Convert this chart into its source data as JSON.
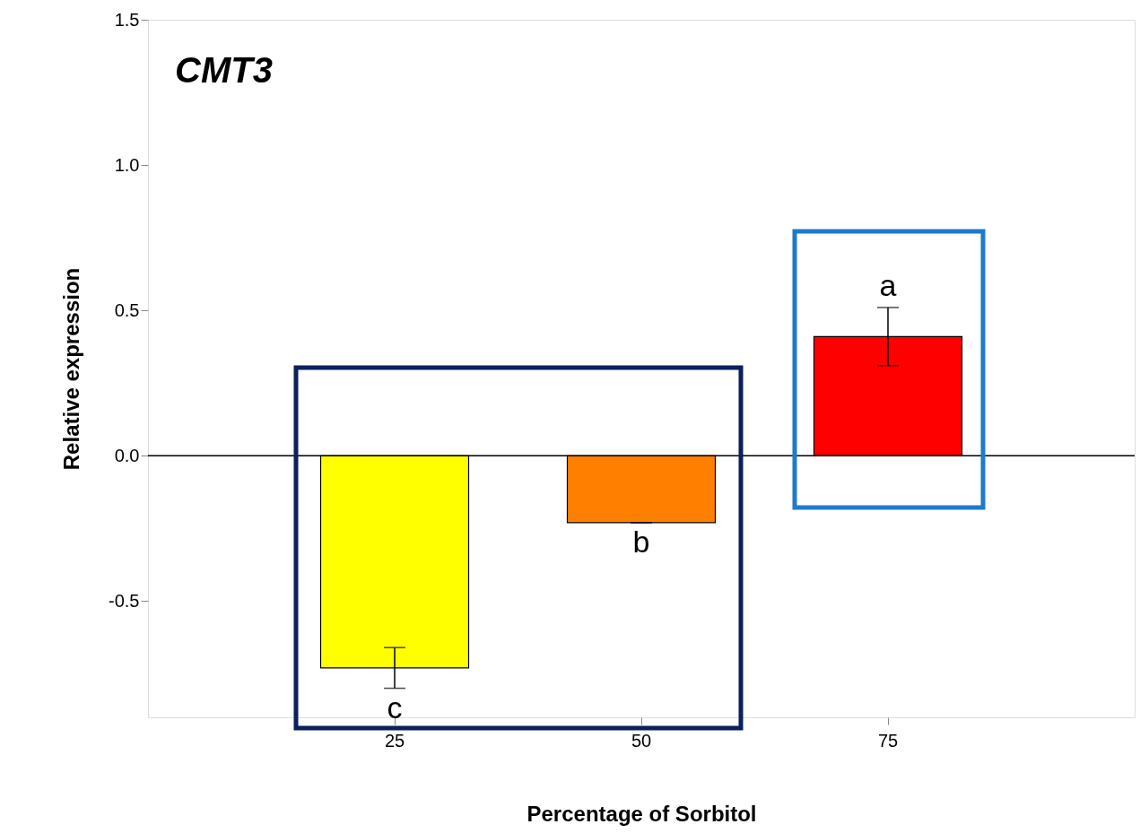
{
  "chart_data": {
    "type": "bar",
    "title": "CMT3",
    "xlabel": "Percentage of Sorbitol",
    "ylabel": "Relative expression",
    "categories": [
      "25",
      "50",
      "75"
    ],
    "values": [
      -0.73,
      -0.23,
      0.41
    ],
    "colors": [
      "#ffff00",
      "#ff8000",
      "#ff0000"
    ],
    "errors": [
      0.07,
      0,
      0.1
    ],
    "ylim": [
      -0.9,
      1.5
    ],
    "yticks": [
      {
        "value": -0.5,
        "label": "-0.5"
      },
      {
        "value": 0,
        "label": "0.0"
      },
      {
        "value": 0.5,
        "label": "0.5"
      },
      {
        "value": 1,
        "label": "1.0"
      },
      {
        "value": 1.5,
        "label": "1.5"
      }
    ],
    "ref_lines": [
      {
        "axis": "y",
        "value": 0,
        "color": "#000000"
      }
    ],
    "annotations": [
      "c",
      "b",
      "a"
    ],
    "grid": false
  }
}
